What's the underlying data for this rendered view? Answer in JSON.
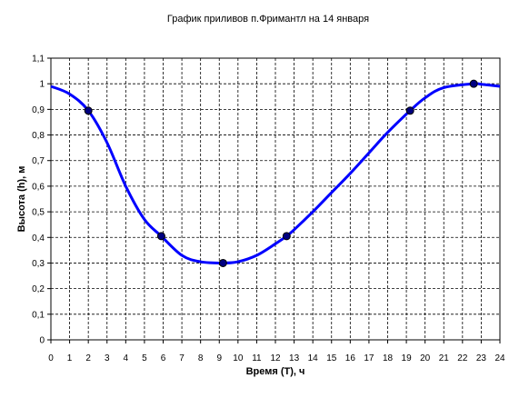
{
  "chart_data": {
    "type": "line",
    "title": "График приливов п.Фримантл на 14 января",
    "xlabel": "Время (T), ч",
    "ylabel": "Высота (h), м",
    "xlim": [
      0,
      24
    ],
    "ylim": [
      0,
      1.1
    ],
    "x_ticks": [
      "0",
      "1",
      "2",
      "3",
      "4",
      "5",
      "6",
      "7",
      "8",
      "9",
      "10",
      "11",
      "12",
      "13",
      "14",
      "15",
      "16",
      "17",
      "18",
      "19",
      "20",
      "21",
      "22",
      "23",
      "24"
    ],
    "y_ticks": [
      "0",
      "0,1",
      "0,2",
      "0,3",
      "0,4",
      "0,5",
      "0,6",
      "0,7",
      "0,8",
      "0,9",
      "1",
      "1,1"
    ],
    "grid": true,
    "legend": "none",
    "series": [
      {
        "color": "#0000ff",
        "curve": [
          {
            "x": 0,
            "y": 0.99
          },
          {
            "x": 1,
            "y": 0.96
          },
          {
            "x": 2,
            "y": 0.895
          },
          {
            "x": 3,
            "y": 0.77
          },
          {
            "x": 4,
            "y": 0.6
          },
          {
            "x": 5,
            "y": 0.47
          },
          {
            "x": 5.9,
            "y": 0.405
          },
          {
            "x": 7,
            "y": 0.33
          },
          {
            "x": 8,
            "y": 0.305
          },
          {
            "x": 9.2,
            "y": 0.3
          },
          {
            "x": 10,
            "y": 0.305
          },
          {
            "x": 11,
            "y": 0.33
          },
          {
            "x": 12,
            "y": 0.375
          },
          {
            "x": 12.6,
            "y": 0.405
          },
          {
            "x": 13,
            "y": 0.43
          },
          {
            "x": 14,
            "y": 0.5
          },
          {
            "x": 15,
            "y": 0.575
          },
          {
            "x": 16,
            "y": 0.65
          },
          {
            "x": 17,
            "y": 0.73
          },
          {
            "x": 18,
            "y": 0.81
          },
          {
            "x": 19.2,
            "y": 0.895
          },
          {
            "x": 20,
            "y": 0.945
          },
          {
            "x": 21,
            "y": 0.985
          },
          {
            "x": 22.6,
            "y": 1.0
          },
          {
            "x": 23,
            "y": 0.998
          },
          {
            "x": 24,
            "y": 0.99
          }
        ],
        "markers": [
          {
            "x": 2,
            "y": 0.895
          },
          {
            "x": 5.9,
            "y": 0.405
          },
          {
            "x": 9.2,
            "y": 0.3
          },
          {
            "x": 12.6,
            "y": 0.405
          },
          {
            "x": 19.2,
            "y": 0.895
          },
          {
            "x": 22.6,
            "y": 1.0
          }
        ]
      }
    ]
  },
  "colors": {
    "line": "#0000ff",
    "marker": "#000080",
    "grid": "#000000",
    "background": "#ffffff"
  }
}
